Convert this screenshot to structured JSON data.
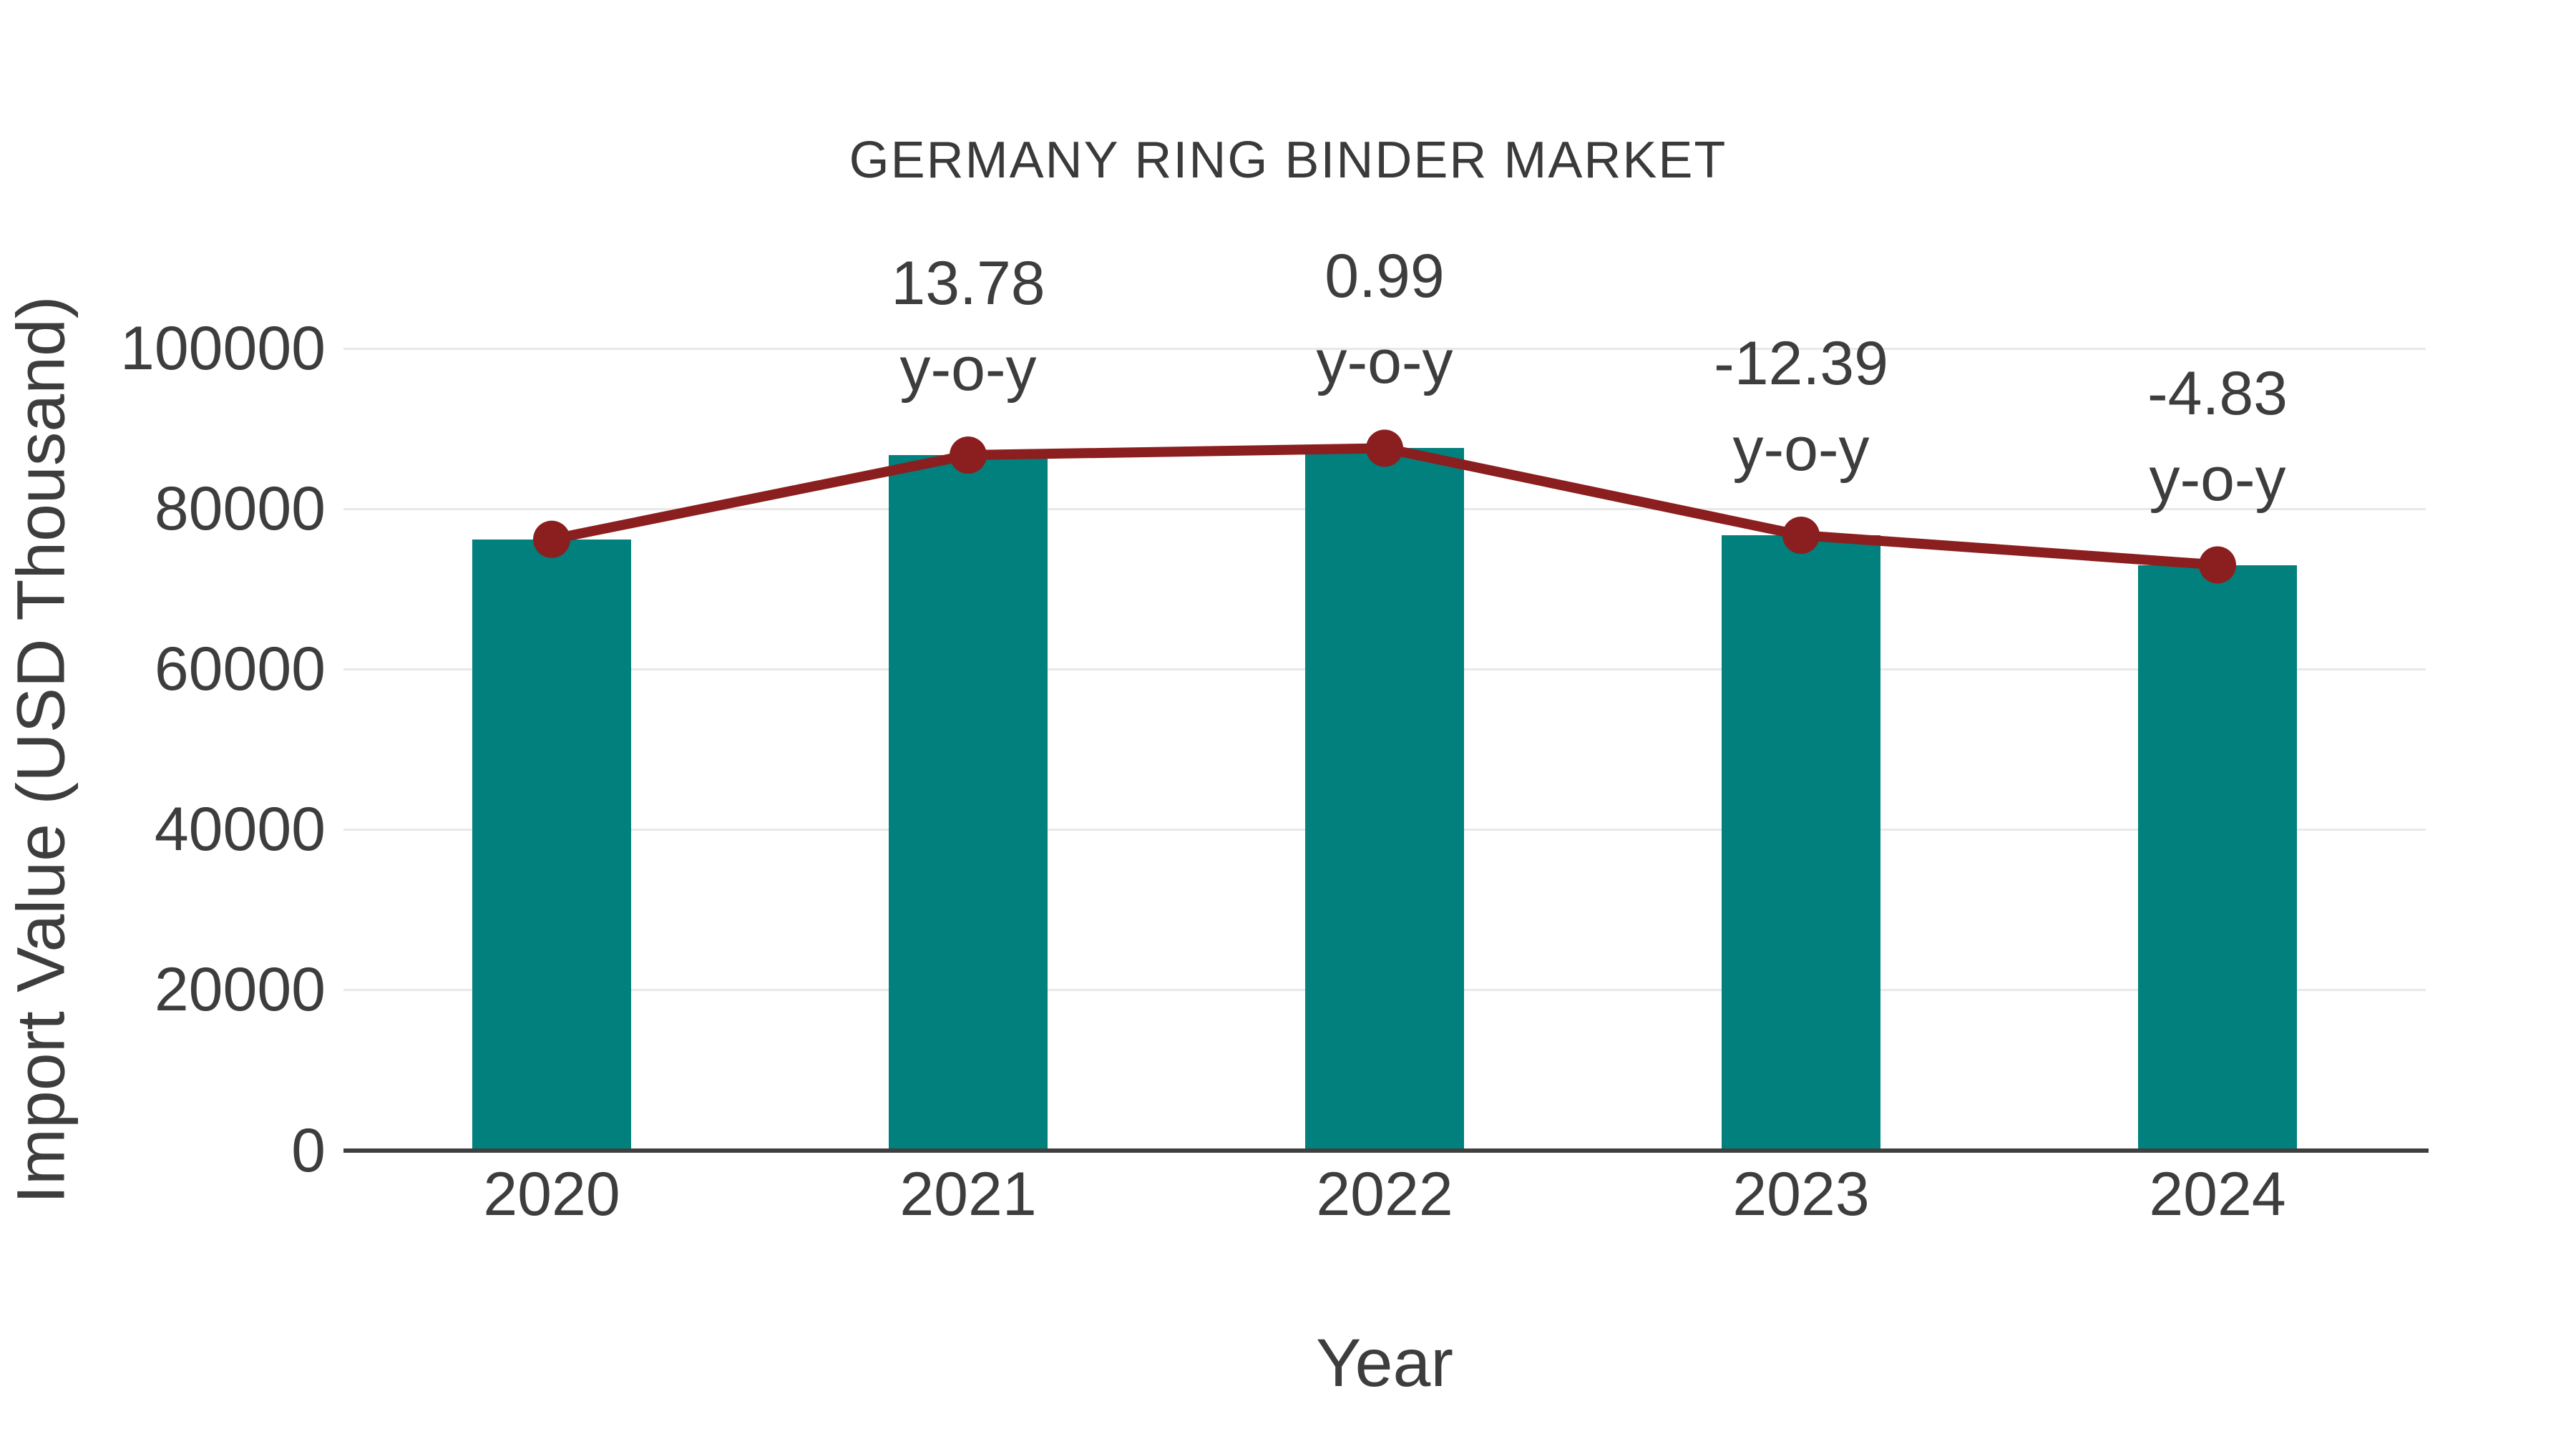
{
  "chart_data": {
    "type": "bar",
    "subtype": "bar-with-line-overlay",
    "title": "GERMANY RING BINDER MARKET",
    "xlabel": "Year",
    "ylabel": "Import Value (USD Thousand)",
    "categories": [
      "2020",
      "2021",
      "2022",
      "2023",
      "2024"
    ],
    "series": [
      {
        "name": "import-value-bars",
        "type": "bar",
        "values": [
          76200,
          86700,
          87560,
          76710,
          73000
        ]
      },
      {
        "name": "import-value-line",
        "type": "line",
        "values": [
          76200,
          86700,
          87560,
          76710,
          73000
        ]
      }
    ],
    "annotations": [
      {
        "category": "2021",
        "line1": "13.78",
        "line2": "y-o-y"
      },
      {
        "category": "2022",
        "line1": "0.99",
        "line2": "y-o-y"
      },
      {
        "category": "2023",
        "line1": "-12.39",
        "line2": "y-o-y"
      },
      {
        "category": "2024",
        "line1": "-4.83",
        "line2": "y-o-y"
      }
    ],
    "y_ticks": [
      0,
      20000,
      40000,
      60000,
      80000,
      100000
    ],
    "ylim": [
      0,
      100000
    ],
    "grid": "horizontal",
    "legend_position": "none",
    "colors": {
      "bar": "#01807D",
      "line": "#8B1E1E",
      "marker": "#8B1E1E",
      "text": "#3D3D3D",
      "grid": "#E9E9E9",
      "axis": "#3F3F3F",
      "background": "#FFFFFF"
    }
  }
}
